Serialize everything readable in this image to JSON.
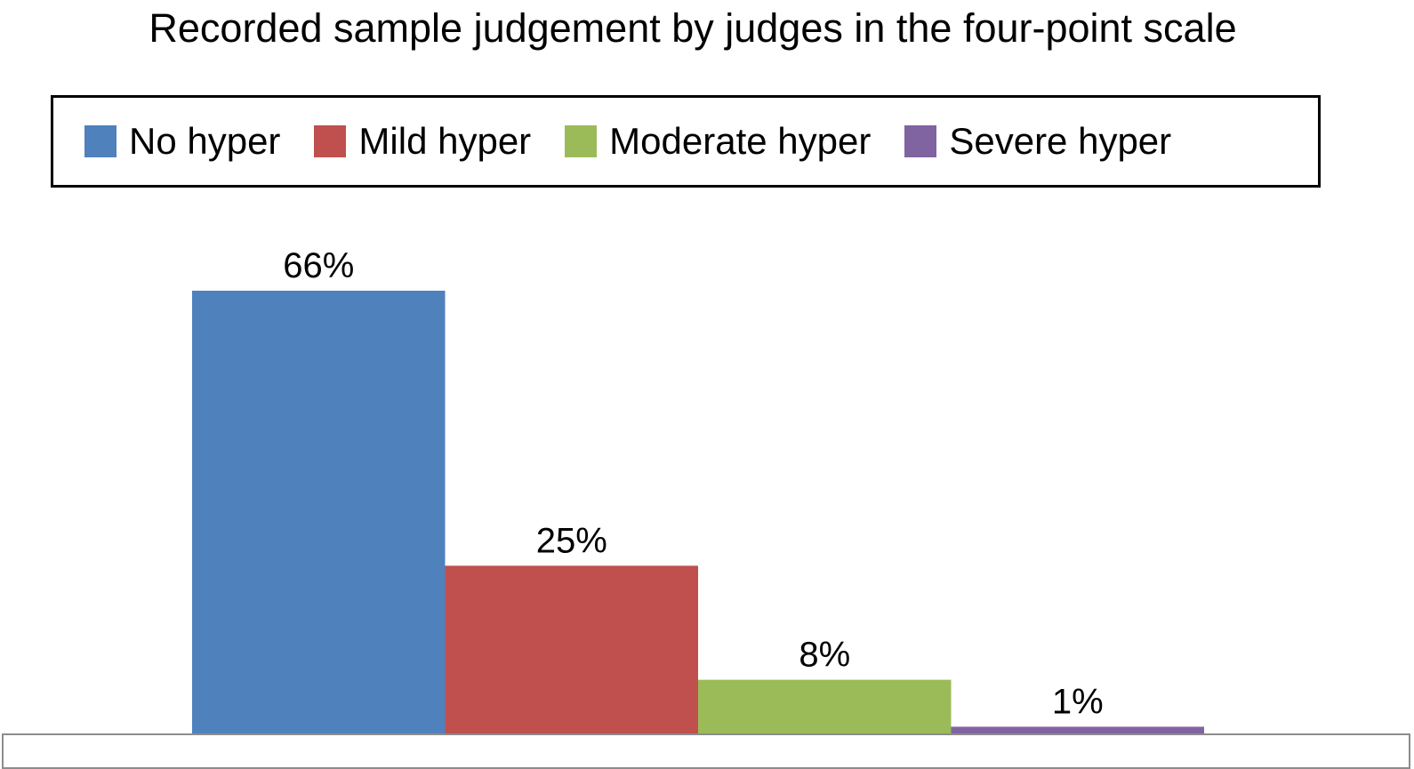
{
  "chart_data": {
    "type": "bar",
    "title": "Recorded sample judgement by judges in the four-point scale",
    "categories": [
      "No hyper",
      "Mild hyper",
      "Moderate hyper",
      "Severe hyper"
    ],
    "series": [
      {
        "name": "No hyper",
        "value": 66,
        "label": "66%",
        "color": "#4f81bd"
      },
      {
        "name": "Mild hyper",
        "value": 25,
        "label": "25%",
        "color": "#c0504d"
      },
      {
        "name": "Moderate hyper",
        "value": 8,
        "label": "8%",
        "color": "#9bbb59"
      },
      {
        "name": "Severe hyper",
        "value": 1,
        "label": "1%",
        "color": "#8064a2"
      }
    ],
    "unit": "%",
    "legend": "top",
    "grid": false,
    "ylim": [
      0,
      66
    ]
  }
}
